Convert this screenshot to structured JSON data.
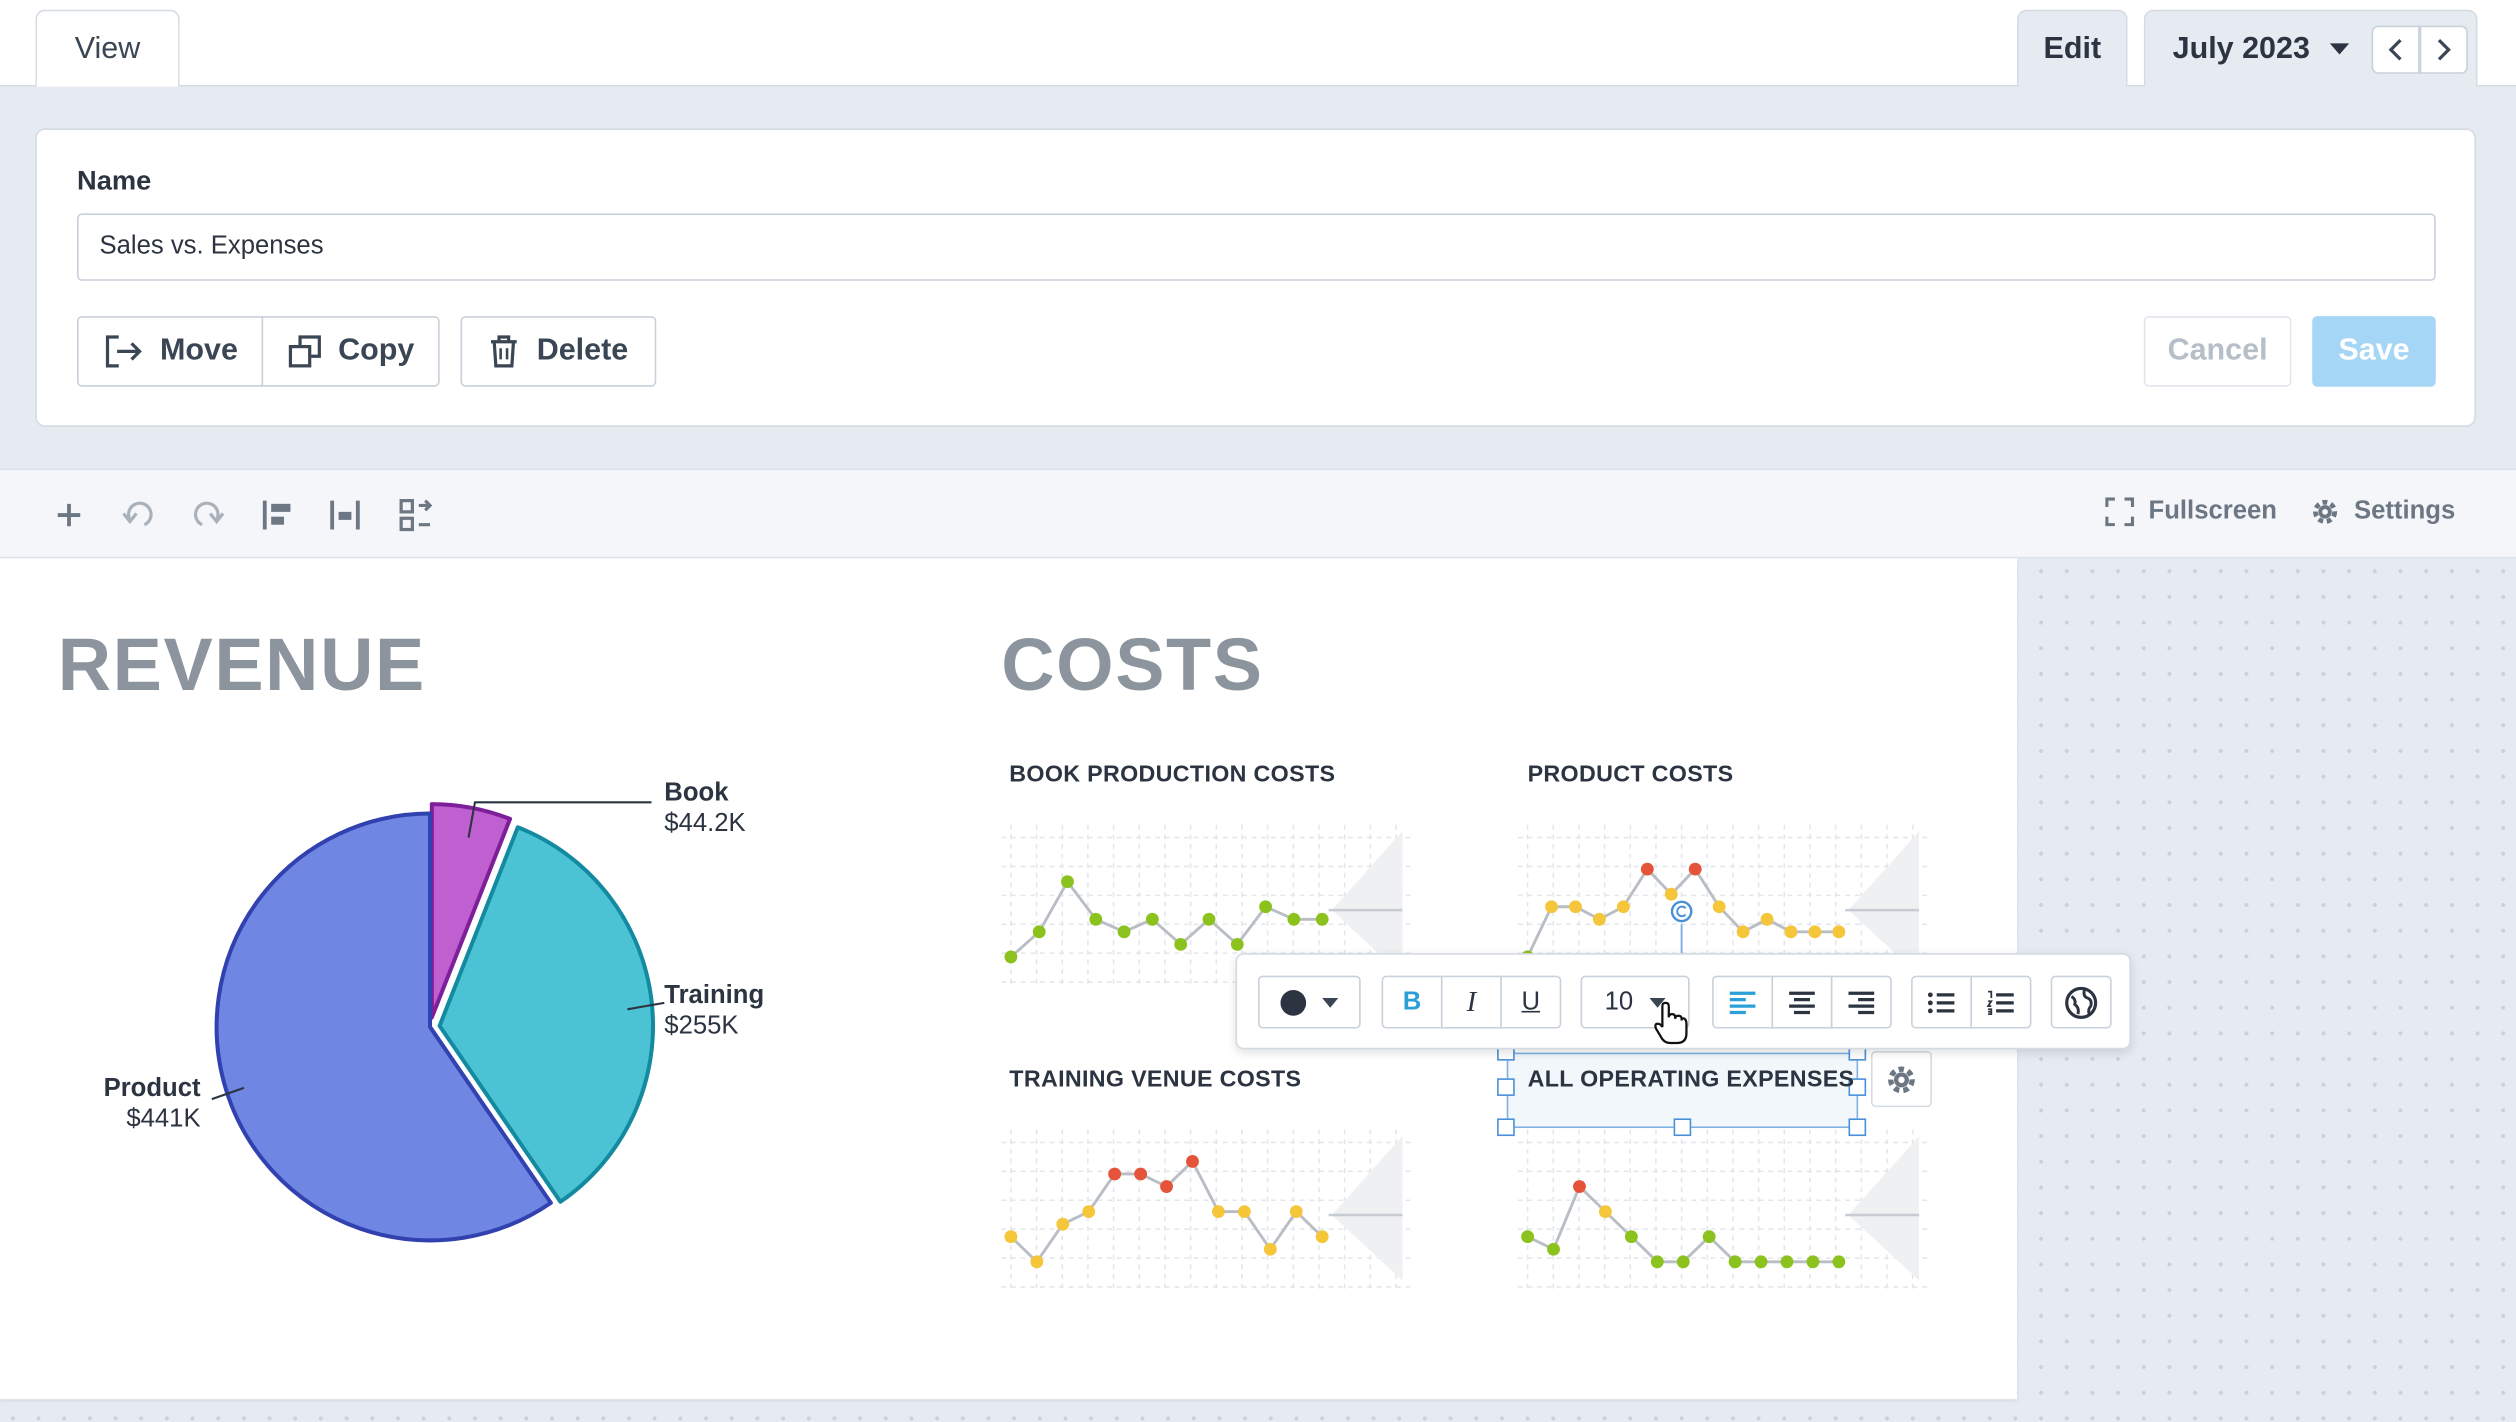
{
  "tabs": {
    "view": "View",
    "edit": "Edit",
    "period": "July 2023"
  },
  "panel": {
    "name_label": "Name",
    "name_value": "Sales vs. Expenses",
    "move": "Move",
    "copy": "Copy",
    "delete": "Delete",
    "cancel": "Cancel",
    "save": "Save"
  },
  "toolbar": {
    "fullscreen": "Fullscreen",
    "settings": "Settings"
  },
  "revenue": {
    "title": "REVENUE",
    "chart_data": {
      "type": "pie",
      "slices": [
        {
          "label": "Book",
          "value_label": "$44.2K",
          "value": 44.2,
          "color": "#c05fd0"
        },
        {
          "label": "Training",
          "value_label": "$255K",
          "value": 255,
          "color": "#4cc3d4"
        },
        {
          "label": "Product",
          "value_label": "$441K",
          "value": 441,
          "color": "#6f87e3"
        }
      ]
    }
  },
  "costs": {
    "title": "COSTS",
    "charts": [
      {
        "title": "BOOK PRODUCTION COSTS",
        "values": [
          2,
          4,
          8,
          5,
          4,
          5,
          3,
          5,
          3,
          6,
          5,
          5
        ],
        "colors": [
          "g",
          "g",
          "g",
          "g",
          "g",
          "g",
          "g",
          "g",
          "g",
          "g",
          "g",
          "g"
        ]
      },
      {
        "title": "PRODUCT COSTS",
        "values": [
          2,
          6,
          6,
          5,
          6,
          9,
          7,
          9,
          6,
          4,
          5,
          4,
          4,
          4
        ],
        "colors": [
          "g",
          "y",
          "y",
          "y",
          "y",
          "r",
          "y",
          "r",
          "y",
          "y",
          "y",
          "y",
          "y",
          "y"
        ]
      },
      {
        "title": "TRAINING VENUE COSTS",
        "values": [
          4,
          2,
          5,
          6,
          9,
          9,
          8,
          10,
          6,
          6,
          3,
          6,
          4
        ],
        "colors": [
          "y",
          "y",
          "y",
          "y",
          "r",
          "r",
          "r",
          "r",
          "y",
          "y",
          "y",
          "y",
          "y"
        ]
      },
      {
        "title": "ALL OPERATING EXPENSES",
        "values": [
          4,
          3,
          8,
          6,
          4,
          2,
          2,
          4,
          2,
          2,
          2,
          2,
          2
        ],
        "colors": [
          "g",
          "g",
          "r",
          "y",
          "g",
          "g",
          "g",
          "g",
          "g",
          "g",
          "g",
          "g",
          "g"
        ]
      }
    ]
  },
  "format_toolbar": {
    "font_size": "10",
    "bold": "B",
    "italic": "I",
    "underline": "U"
  },
  "colors": {
    "green": "#8cc21e",
    "yellow": "#f5c53a",
    "red": "#e5533a",
    "accent": "#2a9fd8"
  }
}
